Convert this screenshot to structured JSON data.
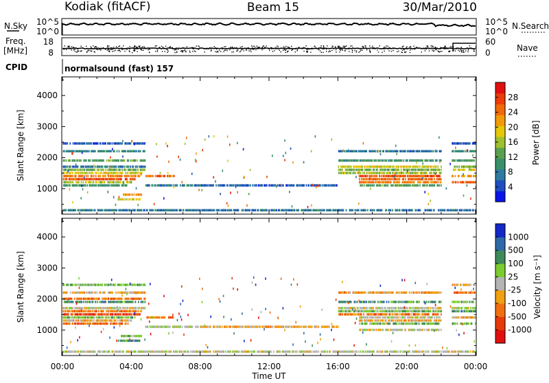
{
  "header": {
    "station": "Kodiak (fitACF)",
    "beam": "Beam 15",
    "date": "30/Mar/2010"
  },
  "status_panels": {
    "nsky_label": "N.Sky",
    "nsearch_label": "N.Search",
    "nsky_ticks": [
      "10^5",
      "10^0"
    ],
    "nsearch_ticks": [
      "10^5",
      "10^0"
    ],
    "freq_label_1": "Freq.",
    "freq_label_2": "[MHz]",
    "freq_ticks": [
      "18",
      "8"
    ],
    "nave_label": "Nave",
    "nave_ticks": [
      "60",
      "0"
    ],
    "cpid_label": "CPID",
    "cpid_text": "normalsound (fast) 157"
  },
  "time_axis": {
    "label": "Time UT",
    "ticks": [
      "00:00",
      "04:00",
      "08:00",
      "12:00",
      "16:00",
      "20:00",
      "00:00"
    ]
  },
  "chart_data": [
    {
      "type": "heatmap",
      "name": "power",
      "xlabel": "Time UT",
      "ylabel": "Slant Range [km]",
      "xlim": [
        0,
        24
      ],
      "ylim": [
        180,
        4600
      ],
      "yticks": [
        "1000",
        "2000",
        "3000",
        "4000"
      ],
      "ytick_values": [
        1000,
        2000,
        3000,
        4000
      ],
      "colorbar": {
        "label": "Power [dB]",
        "range": [
          0,
          32
        ],
        "ticks": [
          "4",
          "8",
          "12",
          "16",
          "20",
          "24",
          "28"
        ],
        "tick_values": [
          4,
          8,
          12,
          16,
          20,
          24,
          28
        ],
        "colors": [
          "#0a14e6",
          "#1f4fbf",
          "#2f7aa0",
          "#3a8f6a",
          "#5aa050",
          "#9fbf2f",
          "#e6c80a",
          "#f29b0a",
          "#f06a0a",
          "#ea3d0a",
          "#e01010"
        ]
      },
      "bands": [
        {
          "t": [
            0.0,
            4.8
          ],
          "r": 2450,
          "v": 4
        },
        {
          "t": [
            0.0,
            4.8
          ],
          "r": 2200,
          "v": 8
        },
        {
          "t": [
            0.0,
            4.8
          ],
          "r": 1900,
          "v": 12
        },
        {
          "t": [
            0.0,
            4.8
          ],
          "r": 1700,
          "v": 6
        },
        {
          "t": [
            0.0,
            4.8
          ],
          "r": 1600,
          "v": 14
        },
        {
          "t": [
            0.0,
            4.6
          ],
          "r": 1500,
          "v": 18
        },
        {
          "t": [
            0.0,
            4.5
          ],
          "r": 1400,
          "v": 24
        },
        {
          "t": [
            0.0,
            4.2
          ],
          "r": 1300,
          "v": 28
        },
        {
          "t": [
            0.0,
            4.0
          ],
          "r": 1200,
          "v": 16
        },
        {
          "t": [
            0.0,
            3.8
          ],
          "r": 1100,
          "v": 10
        },
        {
          "t": [
            3.4,
            4.6
          ],
          "r": 800,
          "v": 22
        },
        {
          "t": [
            3.2,
            4.5
          ],
          "r": 650,
          "v": 18
        },
        {
          "t": [
            4.8,
            6.5
          ],
          "r": 1400,
          "v": 26
        },
        {
          "t": [
            4.8,
            8.0
          ],
          "r": 1100,
          "v": 6
        },
        {
          "t": [
            8.0,
            16.0
          ],
          "r": 1100,
          "v": 4
        },
        {
          "t": [
            16.0,
            22.0
          ],
          "r": 2200,
          "v": 6
        },
        {
          "t": [
            16.0,
            22.0
          ],
          "r": 1900,
          "v": 10
        },
        {
          "t": [
            16.0,
            22.0
          ],
          "r": 1700,
          "v": 18
        },
        {
          "t": [
            16.0,
            22.0
          ],
          "r": 1600,
          "v": 14
        },
        {
          "t": [
            16.0,
            22.0
          ],
          "r": 1500,
          "v": 16
        },
        {
          "t": [
            17.2,
            22.0
          ],
          "r": 1400,
          "v": 28
        },
        {
          "t": [
            17.2,
            22.0
          ],
          "r": 1300,
          "v": 26
        },
        {
          "t": [
            17.2,
            22.0
          ],
          "r": 1200,
          "v": 24
        },
        {
          "t": [
            17.2,
            22.0
          ],
          "r": 1100,
          "v": 12
        },
        {
          "t": [
            22.6,
            24.0
          ],
          "r": 2450,
          "v": 4
        },
        {
          "t": [
            22.6,
            24.0
          ],
          "r": 2200,
          "v": 8
        },
        {
          "t": [
            22.6,
            24.0
          ],
          "r": 1900,
          "v": 12
        },
        {
          "t": [
            22.6,
            24.0
          ],
          "r": 1700,
          "v": 14
        },
        {
          "t": [
            22.6,
            24.0
          ],
          "r": 1600,
          "v": 18
        },
        {
          "t": [
            22.6,
            24.0
          ],
          "r": 1400,
          "v": 22
        },
        {
          "t": [
            22.6,
            24.0
          ],
          "r": 1200,
          "v": 26
        },
        {
          "t": [
            0.0,
            24.0
          ],
          "r": 300,
          "v": 6
        }
      ]
    },
    {
      "type": "heatmap",
      "name": "velocity",
      "xlabel": "Time UT",
      "ylabel": "Slant Range [km]",
      "xlim": [
        0,
        24
      ],
      "ylim": [
        180,
        4600
      ],
      "yticks": [
        "1000",
        "2000",
        "3000",
        "4000"
      ],
      "ytick_values": [
        1000,
        2000,
        3000,
        4000
      ],
      "colorbar": {
        "label": "Velocity [m s⁻¹]",
        "categories": [
          "1000",
          "500",
          "100",
          "25",
          "-25",
          "-100",
          "-500",
          "-1000"
        ],
        "colors": [
          "#1428c8",
          "#2f6aa8",
          "#3f8a5a",
          "#7ccc2f",
          "#b4b4b4",
          "#f0a010",
          "#f07010",
          "#e63a0a",
          "#e01010"
        ]
      },
      "bands": [
        {
          "t": [
            0.0,
            4.8
          ],
          "r": 2450,
          "v": 3
        },
        {
          "t": [
            0.0,
            4.8
          ],
          "r": 2200,
          "v": 5
        },
        {
          "t": [
            0.0,
            4.8
          ],
          "r": 2000,
          "v": 6
        },
        {
          "t": [
            0.0,
            4.8
          ],
          "r": 1900,
          "v": 2
        },
        {
          "t": [
            0.0,
            4.8
          ],
          "r": 1700,
          "v": 4
        },
        {
          "t": [
            0.0,
            4.6
          ],
          "r": 1600,
          "v": 6
        },
        {
          "t": [
            0.0,
            4.5
          ],
          "r": 1500,
          "v": 7
        },
        {
          "t": [
            0.0,
            4.2
          ],
          "r": 1400,
          "v": 3
        },
        {
          "t": [
            0.0,
            4.0
          ],
          "r": 1300,
          "v": 5
        },
        {
          "t": [
            0.0,
            3.8
          ],
          "r": 1200,
          "v": 6
        },
        {
          "t": [
            3.4,
            4.6
          ],
          "r": 800,
          "v": 3
        },
        {
          "t": [
            3.2,
            4.5
          ],
          "r": 650,
          "v": 2
        },
        {
          "t": [
            4.8,
            6.5
          ],
          "r": 1400,
          "v": 6
        },
        {
          "t": [
            4.8,
            8.0
          ],
          "r": 1100,
          "v": 4
        },
        {
          "t": [
            8.0,
            16.0
          ],
          "r": 1100,
          "v": 5
        },
        {
          "t": [
            16.0,
            22.0
          ],
          "r": 2200,
          "v": 5
        },
        {
          "t": [
            16.0,
            22.0
          ],
          "r": 1900,
          "v": 2
        },
        {
          "t": [
            16.0,
            22.0
          ],
          "r": 1700,
          "v": 4
        },
        {
          "t": [
            16.0,
            22.0
          ],
          "r": 1600,
          "v": 3
        },
        {
          "t": [
            16.0,
            22.0
          ],
          "r": 1500,
          "v": 6
        },
        {
          "t": [
            17.2,
            22.0
          ],
          "r": 1400,
          "v": 4
        },
        {
          "t": [
            17.2,
            22.0
          ],
          "r": 1300,
          "v": 5
        },
        {
          "t": [
            17.2,
            22.0
          ],
          "r": 1200,
          "v": 3
        },
        {
          "t": [
            17.2,
            22.0
          ],
          "r": 1000,
          "v": 4
        },
        {
          "t": [
            22.6,
            24.0
          ],
          "r": 2450,
          "v": 5
        },
        {
          "t": [
            22.6,
            24.0
          ],
          "r": 2200,
          "v": 6
        },
        {
          "t": [
            22.6,
            24.0
          ],
          "r": 1900,
          "v": 3
        },
        {
          "t": [
            22.6,
            24.0
          ],
          "r": 1700,
          "v": 4
        },
        {
          "t": [
            22.6,
            24.0
          ],
          "r": 1600,
          "v": 2
        },
        {
          "t": [
            22.6,
            24.0
          ],
          "r": 1400,
          "v": 5
        },
        {
          "t": [
            22.6,
            24.0
          ],
          "r": 1200,
          "v": 3
        },
        {
          "t": [
            0.0,
            24.0
          ],
          "r": 300,
          "v": 4
        }
      ]
    }
  ]
}
